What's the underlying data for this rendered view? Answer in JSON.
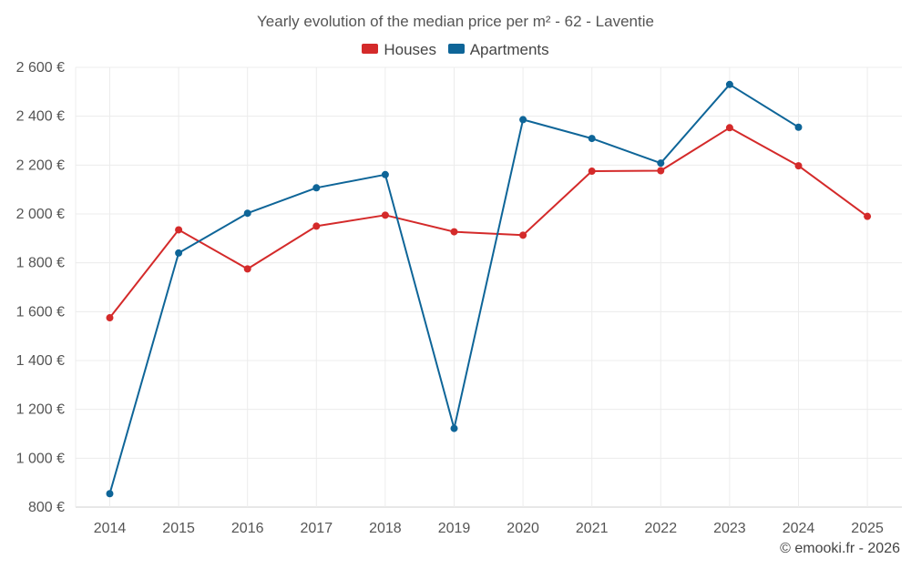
{
  "chart_data": {
    "type": "line",
    "title": "Yearly evolution of the median price per m² - 62 - Laventie",
    "categories": [
      "2014",
      "2015",
      "2016",
      "2017",
      "2018",
      "2019",
      "2020",
      "2021",
      "2022",
      "2023",
      "2024",
      "2025"
    ],
    "y_ticks": [
      800,
      1000,
      1200,
      1400,
      1600,
      1800,
      2000,
      2200,
      2400,
      2600
    ],
    "y_tick_labels": [
      "800 €",
      "1 000 €",
      "1 200 €",
      "1 400 €",
      "1 600 €",
      "1 800 €",
      "2 000 €",
      "2 200 €",
      "2 400 €",
      "2 600 €"
    ],
    "ylim": [
      800,
      2600
    ],
    "grid": true,
    "legend_position": "top-center",
    "series": [
      {
        "name": "Houses",
        "color": "#d42a2a",
        "values": [
          1575,
          1935,
          1775,
          1950,
          1995,
          1927,
          1913,
          2175,
          2177,
          2353,
          2197,
          1990
        ]
      },
      {
        "name": "Apartments",
        "color": "#0e6598",
        "values": [
          855,
          1840,
          2003,
          2107,
          2161,
          1122,
          2386,
          2309,
          2208,
          2530,
          2355,
          null
        ]
      }
    ],
    "credit": "© emooki.fr - 2026"
  }
}
